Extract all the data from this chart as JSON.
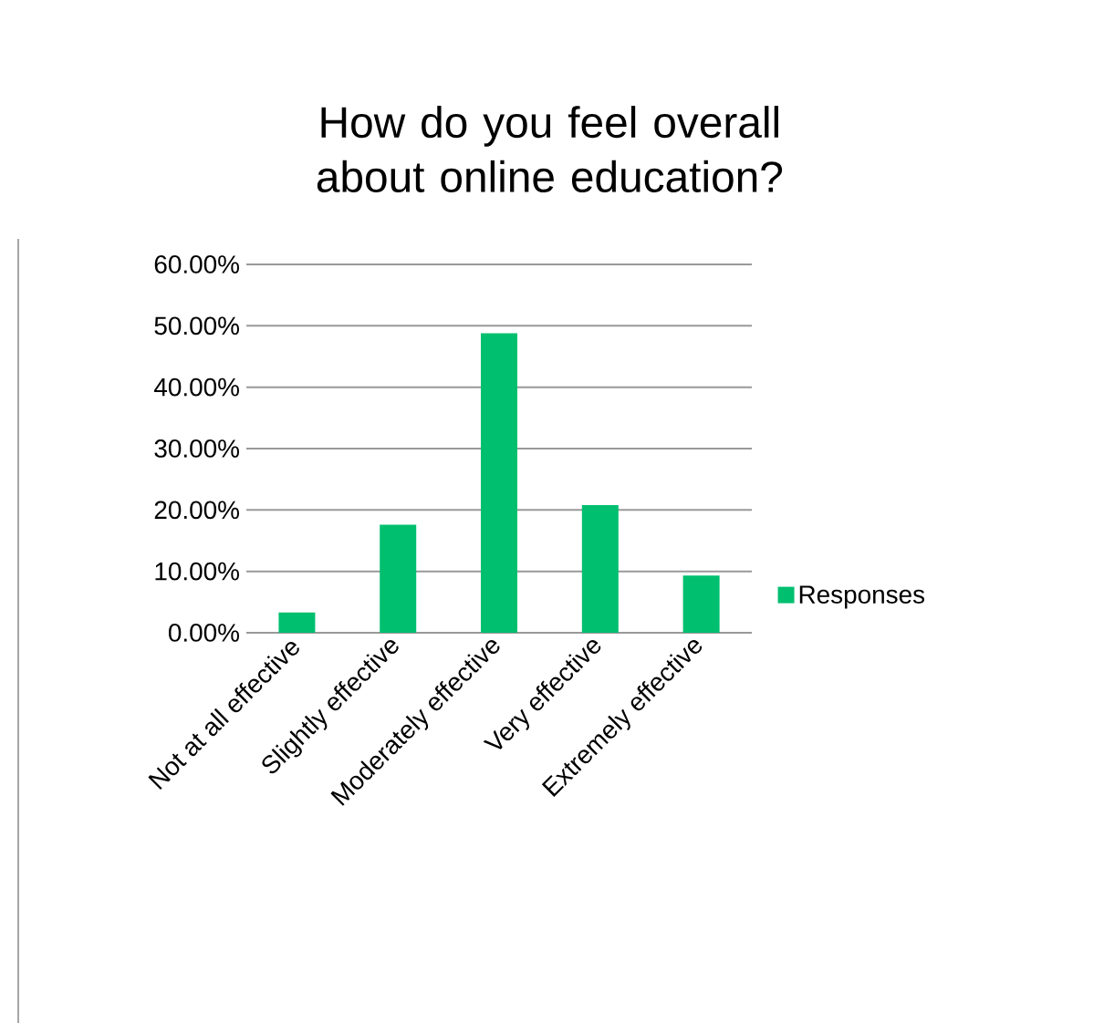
{
  "chart_data": {
    "type": "bar",
    "title": "How do you feel overall about online education?",
    "categories": [
      "Not at all effective",
      "Slightly effective",
      "Moderately effective",
      "Very effective",
      "Extremely effective"
    ],
    "series": [
      {
        "name": "Responses",
        "color": "#00bf6f",
        "values": [
          3.3,
          17.6,
          48.8,
          20.8,
          9.3
        ]
      }
    ],
    "ylim": [
      0,
      60
    ],
    "yticks": [
      {
        "value": 0,
        "label": "0.00%"
      },
      {
        "value": 10,
        "label": "10.00%"
      },
      {
        "value": 20,
        "label": "20.00%"
      },
      {
        "value": 30,
        "label": "30.00%"
      },
      {
        "value": 40,
        "label": "40.00%"
      },
      {
        "value": 50,
        "label": "50.00%"
      },
      {
        "value": 60,
        "label": "60.00%"
      }
    ],
    "grid": "y",
    "legend": "right"
  }
}
